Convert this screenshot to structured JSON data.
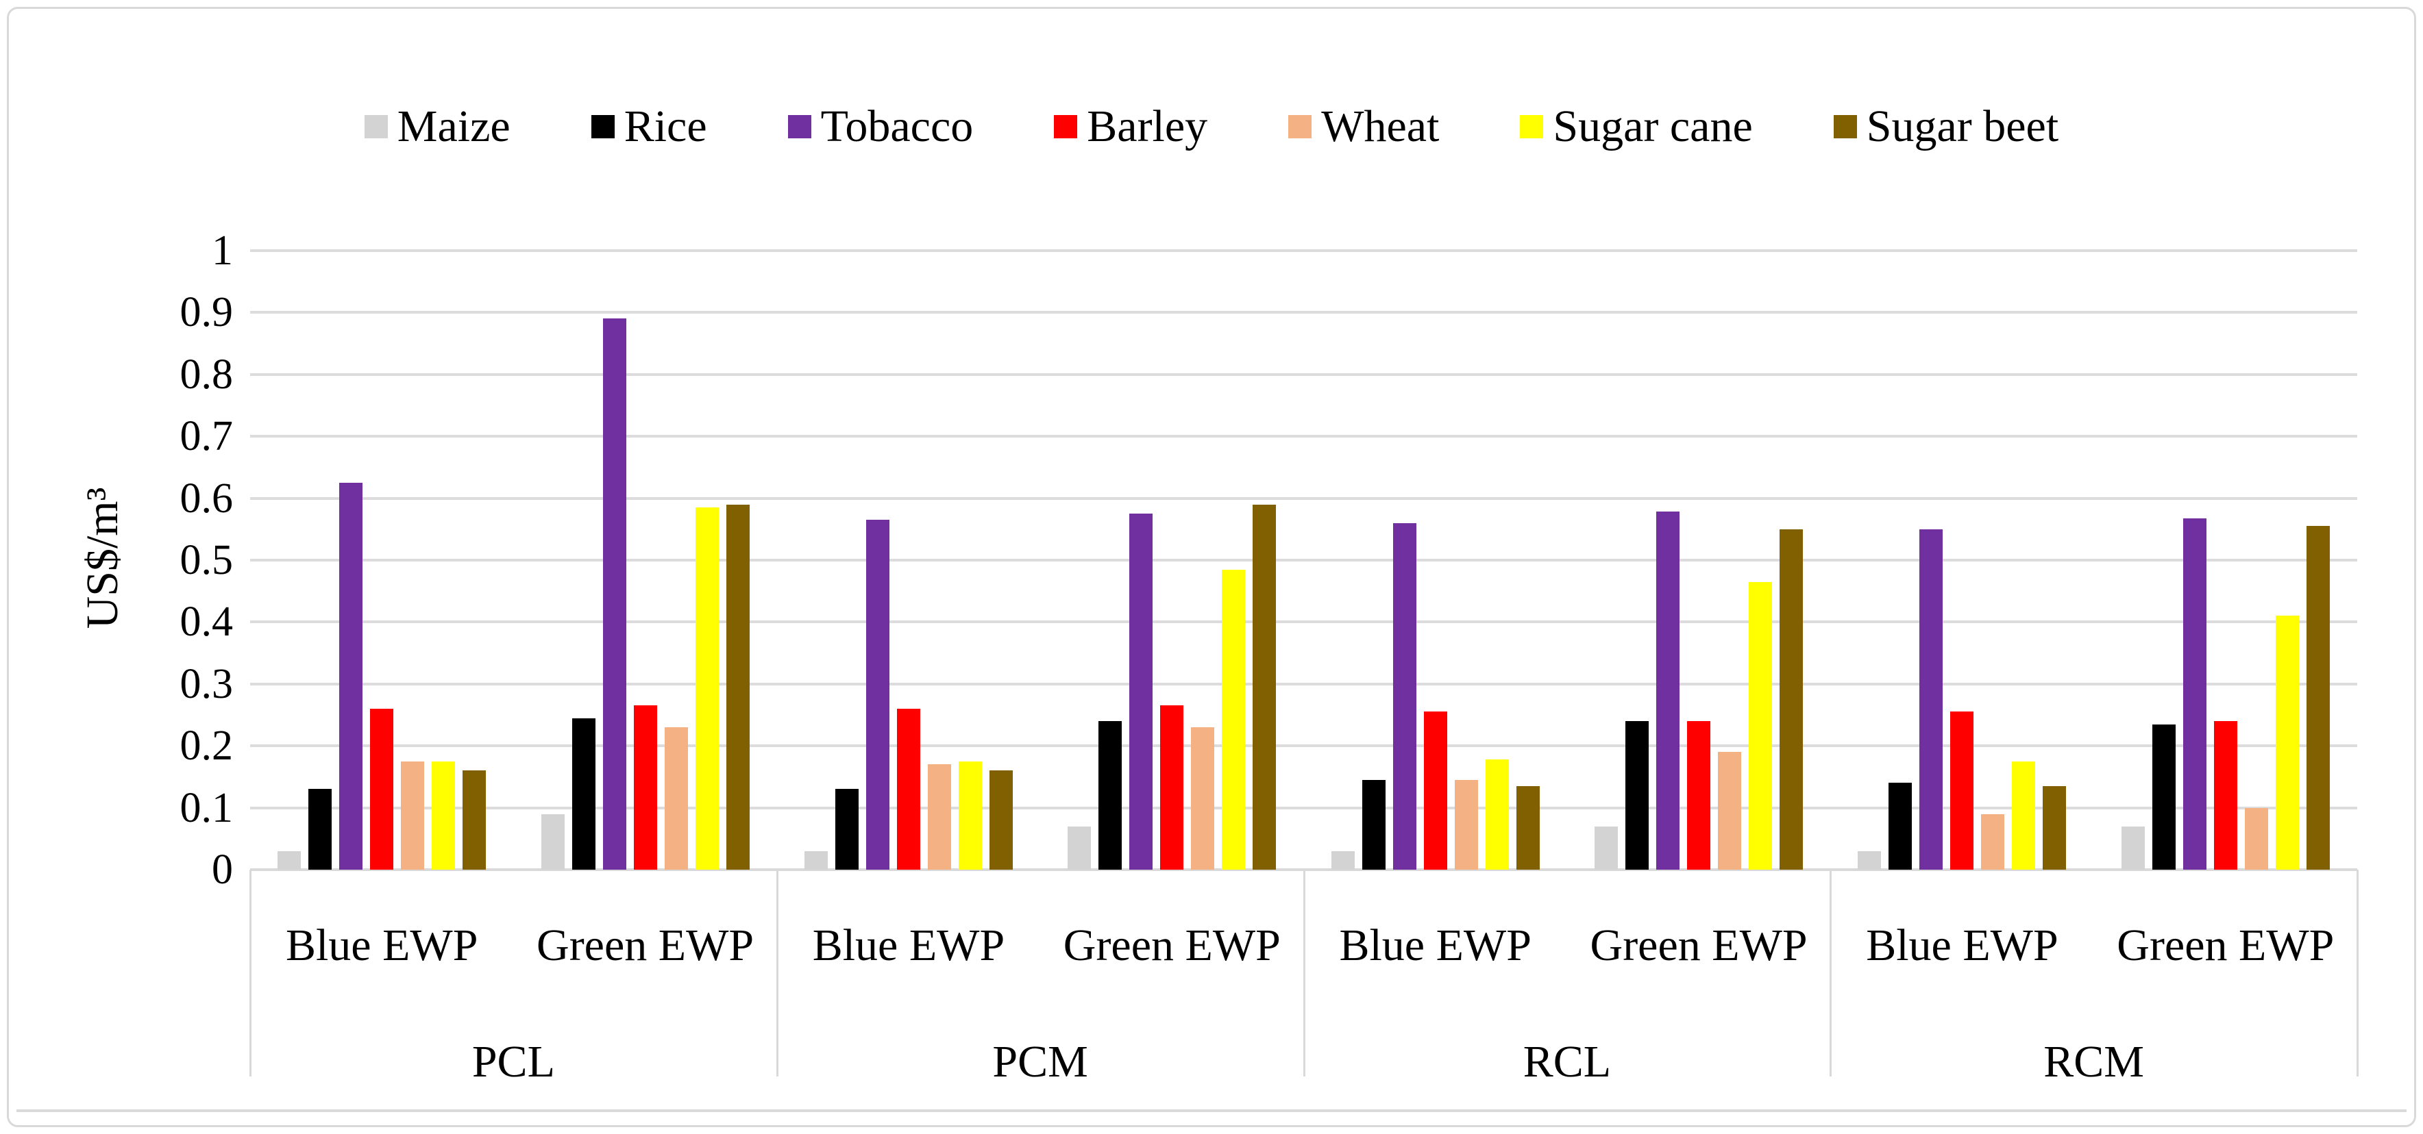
{
  "figure": {
    "y_axis_title": "US$/m³"
  },
  "chart_data": {
    "type": "bar",
    "title": "",
    "xlabel": "",
    "ylabel": "US$/m³",
    "ylim": [
      0,
      1
    ],
    "y_tick_step": 0.1,
    "y_ticks": [
      "1",
      "0.9",
      "0.8",
      "0.7",
      "0.6",
      "0.5",
      "0.4",
      "0.3",
      "0.2",
      "0.1",
      "0"
    ],
    "grid": true,
    "legend_position": "top-center",
    "gridline_color": "#dcdcdc",
    "axis_color": "#d9d9d9",
    "group_labels": [
      "PCL",
      "PCM",
      "RCL",
      "RCM"
    ],
    "subgroup_labels": [
      "Blue EWP",
      "Green EWP"
    ],
    "columns": [
      "PCL Blue EWP",
      "PCL Green EWP",
      "PCM Blue EWP",
      "PCM Green EWP",
      "RCL Blue EWP",
      "RCL Green EWP",
      "RCM Blue EWP",
      "RCM Green EWP"
    ],
    "series": [
      {
        "name": "Maize",
        "color": "#d3d3d3",
        "values": [
          0.03,
          0.09,
          0.03,
          0.07,
          0.03,
          0.07,
          0.03,
          0.07
        ]
      },
      {
        "name": "Rice",
        "color": "#000000",
        "values": [
          0.13,
          0.245,
          0.13,
          0.24,
          0.145,
          0.24,
          0.14,
          0.235
        ]
      },
      {
        "name": "Tobacco",
        "color": "#7030a0",
        "values": [
          0.625,
          0.89,
          0.565,
          0.575,
          0.56,
          0.578,
          0.55,
          0.568
        ]
      },
      {
        "name": "Barley",
        "color": "#ff0000",
        "values": [
          0.26,
          0.265,
          0.26,
          0.265,
          0.255,
          0.24,
          0.255,
          0.24
        ]
      },
      {
        "name": "Wheat",
        "color": "#f4b183",
        "values": [
          0.175,
          0.23,
          0.17,
          0.23,
          0.145,
          0.19,
          0.09,
          0.1
        ]
      },
      {
        "name": "Sugar cane",
        "color": "#ffff00",
        "values": [
          0.175,
          0.585,
          0.175,
          0.485,
          0.178,
          0.465,
          0.175,
          0.41
        ]
      },
      {
        "name": "Sugar beet",
        "color": "#806000",
        "values": [
          0.16,
          0.59,
          0.16,
          0.59,
          0.135,
          0.55,
          0.135,
          0.555
        ]
      }
    ]
  }
}
